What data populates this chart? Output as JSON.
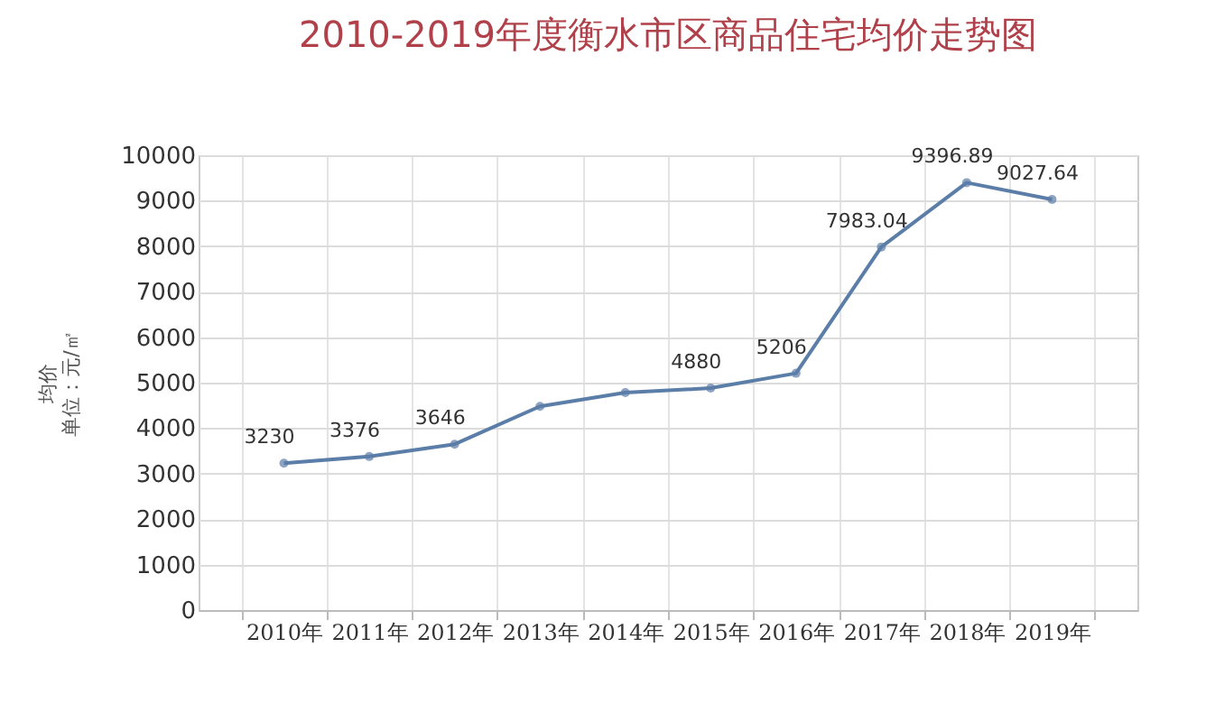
{
  "chart_data": {
    "type": "line",
    "title": "2010-2019年度衡水市区商品住宅均价走势图",
    "ylabel": "均价",
    "annotations": [
      "单位：元/㎡"
    ],
    "categories": [
      "2010年",
      "2011年",
      "2012年",
      "2013年",
      "2014年",
      "2015年",
      "2016年",
      "2017年",
      "2018年",
      "2019年"
    ],
    "series": [
      {
        "color": "#5b7ea8",
        "values": [
          3230,
          3376,
          3646,
          4480,
          4780,
          4880,
          5206,
          7983.04,
          9396.89,
          9027.64
        ],
        "value_labels": [
          "3230",
          "3376",
          "3646",
          null,
          null,
          "4880",
          "5206",
          "7983.04",
          "9396.89",
          "9027.64"
        ]
      }
    ],
    "ylim": [
      0,
      10000
    ],
    "yticks": [
      0,
      1000,
      2000,
      3000,
      4000,
      5000,
      6000,
      7000,
      8000,
      9000,
      10000
    ],
    "grid": true,
    "marker": "circle",
    "line_style": "solid"
  }
}
